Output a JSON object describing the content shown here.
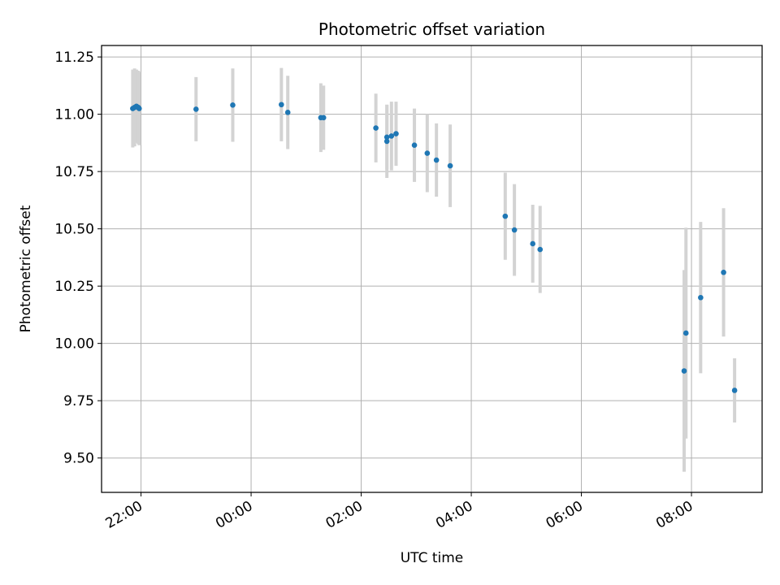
{
  "chart_data": {
    "type": "scatter",
    "title": "Photometric offset variation",
    "xlabel": "UTC time",
    "ylabel": "Photometric offset",
    "x_axis": {
      "kind": "time",
      "range": [
        "21:17",
        "09:17"
      ],
      "ticks": [
        "22:00",
        "00:00",
        "02:00",
        "04:00",
        "06:00",
        "08:00"
      ],
      "tick_label_rotation": 30
    },
    "y_axis": {
      "range": [
        9.35,
        11.3
      ],
      "ticks": [
        "9.50",
        "9.75",
        "10.00",
        "10.25",
        "10.50",
        "10.75",
        "11.00",
        "11.25"
      ]
    },
    "grid": true,
    "legend": "none",
    "series": [
      {
        "marker_color": "#1f77b4",
        "errorbar_color": "#d3d3d3",
        "points": [
          {
            "x": "21:51",
            "y": 11.025,
            "err": 0.17
          },
          {
            "x": "21:53",
            "y": 11.03,
            "err": 0.17
          },
          {
            "x": "21:55",
            "y": 11.035,
            "err": 0.16
          },
          {
            "x": "21:57",
            "y": 11.03,
            "err": 0.16
          },
          {
            "x": "21:58",
            "y": 11.025,
            "err": 0.16
          },
          {
            "x": "23:00",
            "y": 11.022,
            "err": 0.14
          },
          {
            "x": "23:40",
            "y": 11.04,
            "err": 0.16
          },
          {
            "x": "00:33",
            "y": 11.042,
            "err": 0.16
          },
          {
            "x": "00:40",
            "y": 11.008,
            "err": 0.16
          },
          {
            "x": "01:16",
            "y": 10.985,
            "err": 0.15
          },
          {
            "x": "01:19",
            "y": 10.985,
            "err": 0.14
          },
          {
            "x": "02:16",
            "y": 10.94,
            "err": 0.15
          },
          {
            "x": "02:28",
            "y": 10.9,
            "err": 0.14
          },
          {
            "x": "02:28",
            "y": 10.882,
            "err": 0.16
          },
          {
            "x": "02:33",
            "y": 10.905,
            "err": 0.15
          },
          {
            "x": "02:38",
            "y": 10.915,
            "err": 0.14
          },
          {
            "x": "02:58",
            "y": 10.865,
            "err": 0.16
          },
          {
            "x": "03:12",
            "y": 10.83,
            "err": 0.17
          },
          {
            "x": "03:22",
            "y": 10.8,
            "err": 0.16
          },
          {
            "x": "03:37",
            "y": 10.775,
            "err": 0.18
          },
          {
            "x": "04:37",
            "y": 10.555,
            "err": 0.19
          },
          {
            "x": "04:47",
            "y": 10.495,
            "err": 0.2
          },
          {
            "x": "05:07",
            "y": 10.435,
            "err": 0.17
          },
          {
            "x": "05:15",
            "y": 10.41,
            "err": 0.19
          },
          {
            "x": "07:52",
            "y": 9.88,
            "err": 0.44
          },
          {
            "x": "07:54",
            "y": 10.045,
            "err": 0.46
          },
          {
            "x": "08:10",
            "y": 10.2,
            "err": 0.33
          },
          {
            "x": "08:35",
            "y": 10.31,
            "err": 0.28
          },
          {
            "x": "08:47",
            "y": 9.795,
            "err": 0.14
          }
        ]
      }
    ]
  }
}
